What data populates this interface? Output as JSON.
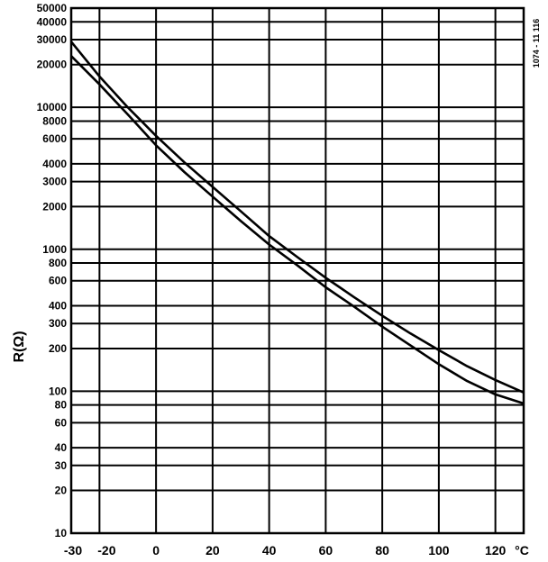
{
  "chart_data": {
    "type": "line",
    "title": "",
    "xlabel": "",
    "ylabel": "R(Ω)",
    "x_unit": "°C",
    "xlim": [
      -30,
      130
    ],
    "ylim": [
      10,
      50000
    ],
    "yscale": "log",
    "grid": true,
    "x_ticks": [
      "-30",
      "-20",
      "0",
      "20",
      "40",
      "60",
      "80",
      "100",
      "120"
    ],
    "x_tick_values": [
      -30,
      -20,
      0,
      20,
      40,
      60,
      80,
      100,
      120
    ],
    "y_ticks": [
      "50000",
      "40000",
      "30000",
      "20000",
      "10000",
      "8000",
      "6000",
      "4000",
      "3000",
      "2000",
      "1000",
      "800",
      "600",
      "400",
      "300",
      "200",
      "100",
      "80",
      "60",
      "40",
      "30",
      "20",
      "10"
    ],
    "y_tick_values": [
      50000,
      40000,
      30000,
      20000,
      10000,
      8000,
      6000,
      4000,
      3000,
      2000,
      1000,
      800,
      600,
      400,
      300,
      200,
      100,
      80,
      60,
      40,
      30,
      20,
      10
    ],
    "series": [
      {
        "x": [
          -30,
          -20,
          -10,
          0,
          10,
          20,
          30,
          40,
          50,
          60,
          70,
          80,
          90,
          100,
          110,
          120,
          130
        ],
        "y": [
          29000,
          16500,
          10000,
          6300,
          4100,
          2750,
          1850,
          1240,
          880,
          630,
          460,
          340,
          255,
          195,
          150,
          120,
          98
        ]
      },
      {
        "x": [
          -30,
          -20,
          -10,
          0,
          10,
          20,
          30,
          40,
          50,
          60,
          70,
          80,
          90,
          100,
          110,
          120,
          130
        ],
        "y": [
          23000,
          14500,
          8900,
          5400,
          3500,
          2350,
          1580,
          1080,
          770,
          540,
          395,
          285,
          210,
          155,
          118,
          95,
          82
        ]
      }
    ],
    "annotations": [
      "1074 - 11 116"
    ]
  }
}
